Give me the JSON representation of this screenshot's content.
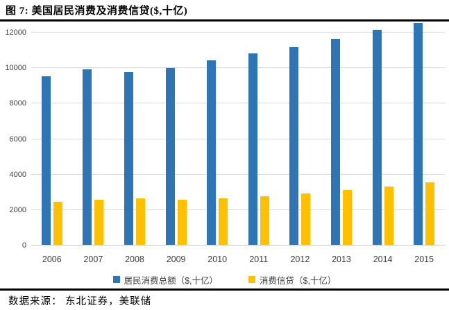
{
  "header": {
    "title": "图 7: 美国居民消费及消费信贷($,十亿)"
  },
  "footer": {
    "source": "数据来源： 东北证券，美联储"
  },
  "chart_data": {
    "type": "bar",
    "title": "美国居民消费及消费信贷($,十亿)",
    "categories": [
      "2006",
      "2007",
      "2008",
      "2009",
      "2010",
      "2011",
      "2012",
      "2013",
      "2014",
      "2015"
    ],
    "series": [
      {
        "name": "居民消费总额（$,十亿）",
        "color": "#2E75B6",
        "values": [
          9500,
          9900,
          9750,
          9950,
          10400,
          10800,
          11150,
          11600,
          12100,
          12500
        ]
      },
      {
        "name": "消费信贷（$,十亿）",
        "color": "#FFC000",
        "values": [
          2420,
          2560,
          2620,
          2530,
          2600,
          2730,
          2900,
          3080,
          3300,
          3500
        ]
      }
    ],
    "xlabel": "",
    "ylabel": "",
    "ylim": [
      0,
      12600
    ],
    "yticks": [
      0,
      2000,
      4000,
      6000,
      8000,
      10000,
      12000
    ],
    "grid": true,
    "gridline_color": "#D9D9D9",
    "legend_position": "bottom"
  }
}
